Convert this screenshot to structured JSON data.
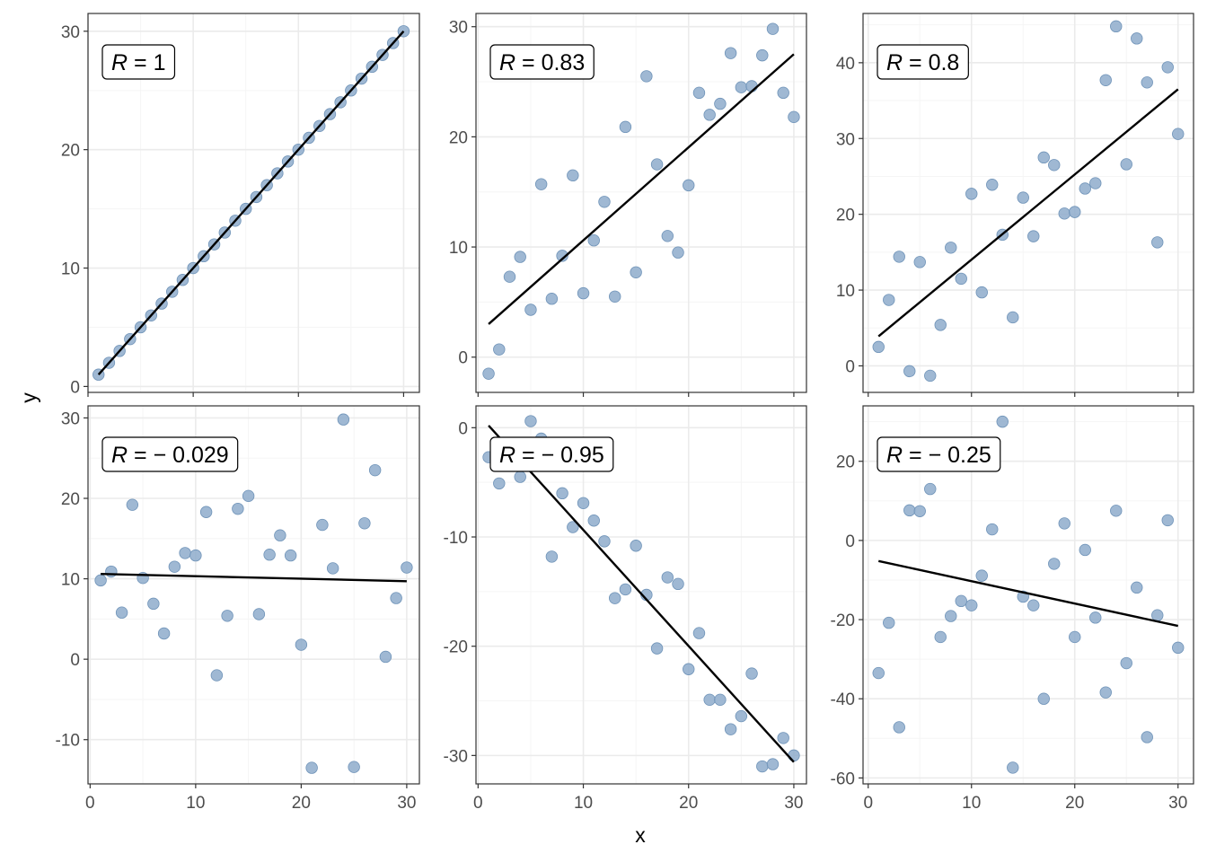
{
  "figure": {
    "xlabel": "x",
    "ylabel": "y",
    "colors": {
      "point_fill": "#8eaccb",
      "point_stroke": "#6f93b8",
      "fit_line": "#000000",
      "grid_major": "#ebebeb",
      "grid_minor": "#f5f5f5",
      "panel_border": "#333333",
      "tick_label": "#4d4d4d"
    }
  },
  "chart_data": [
    {
      "type": "scatter",
      "title": "",
      "annotation": {
        "symbol": "R",
        "eq": " = ",
        "value": "1"
      },
      "xlabel": "",
      "ylabel": "",
      "xlim": [
        0,
        31.5
      ],
      "ylim": [
        -0.5,
        31.5
      ],
      "xticks": [
        0,
        10,
        20,
        30
      ],
      "yticks": [
        0,
        10,
        20,
        30
      ],
      "xminor": [
        5,
        15,
        25
      ],
      "yminor": [
        5,
        15,
        25
      ],
      "grid": true,
      "legend": "none",
      "x": [
        1,
        2,
        3,
        4,
        5,
        6,
        7,
        8,
        9,
        10,
        11,
        12,
        13,
        14,
        15,
        16,
        17,
        18,
        19,
        20,
        21,
        22,
        23,
        24,
        25,
        26,
        27,
        28,
        29,
        30
      ],
      "y": [
        1,
        2,
        3,
        4,
        5,
        6,
        7,
        8,
        9,
        10,
        11,
        12,
        13,
        14,
        15,
        16,
        17,
        18,
        19,
        20,
        21,
        22,
        23,
        24,
        25,
        26,
        27,
        28,
        29,
        30
      ],
      "fit": {
        "x": [
          1,
          30
        ],
        "y": [
          1,
          30
        ]
      }
    },
    {
      "type": "scatter",
      "title": "",
      "annotation": {
        "symbol": "R",
        "eq": " = ",
        "value": "0.83"
      },
      "xlabel": "",
      "ylabel": "",
      "xlim": [
        -0.2,
        31.2
      ],
      "ylim": [
        -3.2,
        31.2
      ],
      "xticks": [
        0,
        10,
        20,
        30
      ],
      "yticks": [
        0,
        10,
        20,
        30
      ],
      "xminor": [
        5,
        15,
        25
      ],
      "yminor": [
        5,
        15,
        25
      ],
      "grid": true,
      "legend": "none",
      "x": [
        1,
        2,
        3,
        4,
        5,
        6,
        7,
        8,
        9,
        10,
        11,
        12,
        13,
        14,
        15,
        16,
        17,
        18,
        19,
        20,
        21,
        22,
        23,
        24,
        25,
        26,
        27,
        28,
        29,
        30
      ],
      "y": [
        -1.5,
        0.7,
        7.3,
        9.1,
        4.3,
        15.7,
        5.3,
        9.2,
        16.5,
        5.8,
        10.6,
        14.1,
        5.5,
        20.9,
        7.7,
        25.5,
        17.5,
        11.0,
        9.5,
        15.6,
        24.0,
        22.0,
        23.0,
        27.6,
        24.5,
        24.6,
        27.4,
        29.8,
        24.0,
        21.8
      ],
      "fit": {
        "x": [
          1,
          30
        ],
        "y": [
          3.0,
          27.5
        ]
      }
    },
    {
      "type": "scatter",
      "title": "",
      "annotation": {
        "symbol": "R",
        "eq": " = ",
        "value": "0.8"
      },
      "xlabel": "",
      "ylabel": "",
      "xlim": [
        -0.5,
        31.5
      ],
      "ylim": [
        -3.5,
        46.5
      ],
      "xticks": [
        0,
        10,
        20,
        30
      ],
      "yticks": [
        0,
        10,
        20,
        30,
        40
      ],
      "xminor": [
        5,
        15,
        25
      ],
      "yminor": [
        5,
        15,
        25,
        35,
        45
      ],
      "grid": true,
      "legend": "none",
      "x": [
        1,
        2,
        3,
        4,
        5,
        6,
        7,
        8,
        9,
        10,
        11,
        12,
        13,
        14,
        15,
        16,
        17,
        18,
        19,
        20,
        21,
        22,
        23,
        24,
        25,
        26,
        27,
        28,
        29,
        30
      ],
      "y": [
        2.5,
        8.7,
        14.4,
        -0.7,
        13.7,
        -1.3,
        5.4,
        15.6,
        11.5,
        22.7,
        9.7,
        23.9,
        17.3,
        6.4,
        22.2,
        17.1,
        27.5,
        26.5,
        20.1,
        20.3,
        23.4,
        24.1,
        37.7,
        44.8,
        26.6,
        43.2,
        37.4,
        16.3,
        39.4,
        30.6
      ],
      "fit": {
        "x": [
          1,
          30
        ],
        "y": [
          3.9,
          36.5
        ]
      }
    },
    {
      "type": "scatter",
      "title": "",
      "annotation": {
        "symbol": "R",
        "eq": " = ",
        "value": "− 0.029"
      },
      "xlabel": "",
      "ylabel": "",
      "xlim": [
        -0.2,
        31.2
      ],
      "ylim": [
        -15.5,
        31.5
      ],
      "xticks": [
        0,
        10,
        20,
        30
      ],
      "yticks": [
        -10,
        0,
        10,
        20,
        30
      ],
      "xminor": [
        5,
        15,
        25
      ],
      "yminor": [
        -5,
        5,
        15,
        25
      ],
      "grid": true,
      "legend": "none",
      "x": [
        1,
        2,
        3,
        4,
        5,
        6,
        7,
        8,
        9,
        10,
        11,
        12,
        13,
        14,
        15,
        16,
        17,
        18,
        19,
        20,
        21,
        22,
        23,
        24,
        25,
        26,
        27,
        28,
        29,
        30
      ],
      "y": [
        9.8,
        10.9,
        5.8,
        19.2,
        10.1,
        6.9,
        3.2,
        11.5,
        13.2,
        12.9,
        18.3,
        -2.0,
        5.4,
        18.7,
        20.3,
        5.6,
        13.0,
        15.4,
        12.9,
        1.8,
        -13.5,
        16.7,
        11.3,
        29.8,
        -13.4,
        16.9,
        23.5,
        0.3,
        7.6,
        11.4
      ],
      "fit": {
        "x": [
          1,
          30
        ],
        "y": [
          10.6,
          9.7
        ]
      }
    },
    {
      "type": "scatter",
      "title": "",
      "annotation": {
        "symbol": "R",
        "eq": " = ",
        "value": "− 0.95"
      },
      "xlabel": "",
      "ylabel": "",
      "xlim": [
        -0.2,
        31.2
      ],
      "ylim": [
        -32.6,
        2.0
      ],
      "xticks": [
        0,
        10,
        20,
        30
      ],
      "yticks": [
        -30,
        -20,
        -10,
        0
      ],
      "xminor": [
        5,
        15,
        25
      ],
      "yminor": [
        -25,
        -15,
        -5
      ],
      "grid": true,
      "legend": "none",
      "x": [
        1,
        2,
        3,
        4,
        5,
        6,
        7,
        8,
        9,
        10,
        11,
        12,
        13,
        14,
        15,
        16,
        17,
        18,
        19,
        20,
        21,
        22,
        23,
        24,
        25,
        26,
        27,
        28,
        29,
        30
      ],
      "y": [
        -2.7,
        -5.1,
        -2.8,
        -4.5,
        0.6,
        -1.0,
        -11.8,
        -6.0,
        -9.1,
        -6.9,
        -8.5,
        -10.4,
        -15.6,
        -14.8,
        -10.8,
        -15.3,
        -20.2,
        -13.7,
        -14.3,
        -22.1,
        -18.8,
        -24.9,
        -24.9,
        -27.6,
        -26.4,
        -22.5,
        -31.0,
        -30.8,
        -28.4,
        -30.0
      ],
      "fit": {
        "x": [
          1,
          30
        ],
        "y": [
          0.2,
          -30.6
        ]
      }
    },
    {
      "type": "scatter",
      "title": "",
      "annotation": {
        "symbol": "R",
        "eq": " = ",
        "value": "− 0.25"
      },
      "xlabel": "",
      "ylabel": "",
      "xlim": [
        -0.5,
        31.5
      ],
      "ylim": [
        -61.5,
        34.0
      ],
      "xticks": [
        0,
        10,
        20,
        30
      ],
      "yticks": [
        -60,
        -40,
        -20,
        0,
        20
      ],
      "xminor": [
        5,
        15,
        25
      ],
      "yminor": [
        -50,
        -30,
        -10,
        10,
        30
      ],
      "grid": true,
      "legend": "none",
      "x": [
        1,
        2,
        3,
        4,
        5,
        6,
        7,
        8,
        9,
        10,
        11,
        12,
        13,
        14,
        15,
        16,
        17,
        18,
        19,
        20,
        21,
        22,
        23,
        24,
        25,
        26,
        27,
        28,
        29,
        30
      ],
      "y": [
        -33.5,
        -20.8,
        -47.2,
        7.6,
        7.4,
        13.0,
        -24.4,
        -19.1,
        -15.3,
        -16.4,
        -8.9,
        2.8,
        30.0,
        -57.4,
        -14.2,
        -16.4,
        -40.0,
        -5.9,
        4.3,
        -24.4,
        -2.4,
        -19.5,
        -38.4,
        7.5,
        -31.0,
        -11.9,
        -49.7,
        -18.9,
        5.1,
        -27.1
      ],
      "fit": {
        "x": [
          1,
          30
        ],
        "y": [
          -5.2,
          -21.6
        ]
      }
    }
  ]
}
